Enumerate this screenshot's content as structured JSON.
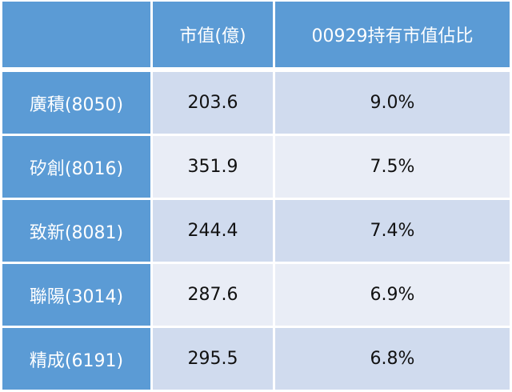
{
  "header": [
    "",
    "市值(億)",
    "00929持有市值佔比"
  ],
  "rows": [
    {
      "name": "廣積(8050)",
      "market_cap": "203.6",
      "weight": "9.0%"
    },
    {
      "name": "矽創(8016)",
      "market_cap": "351.9",
      "weight": "7.5%"
    },
    {
      "name": "致新(8081)",
      "market_cap": "244.4",
      "weight": "7.4%"
    },
    {
      "name": "聯陽(3014)",
      "market_cap": "287.6",
      "weight": "6.9%"
    },
    {
      "name": "精成(6191)",
      "market_cap": "295.5",
      "weight": "6.8%"
    }
  ],
  "colors": {
    "header": "#5b9bd5",
    "row_odd": "#d0dbee",
    "row_even": "#e9edf6"
  }
}
